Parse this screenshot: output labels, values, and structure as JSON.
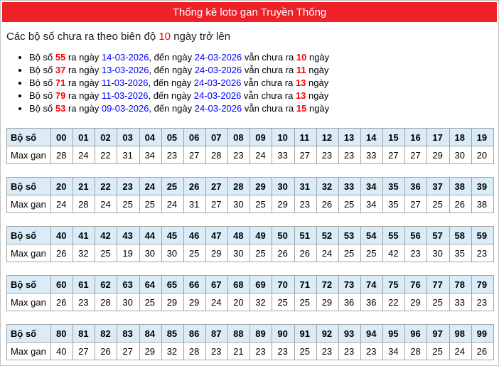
{
  "header": {
    "title": "Thống kê loto gan Truyền Thống",
    "bar_color": "#ee2129"
  },
  "subtitle": {
    "prefix": "Các bộ số chưa ra theo biên độ ",
    "threshold": "10",
    "suffix": " ngày trở lên"
  },
  "alert_text": {
    "p1": "Bộ số ",
    "p2": " ra ngày ",
    "p3": ", đến ngày ",
    "p4": " vẫn chưa ra ",
    "p5": " ngày"
  },
  "alerts": [
    {
      "number": "55",
      "from": "14-03-2026",
      "to": "24-03-2026",
      "days": "10"
    },
    {
      "number": "37",
      "from": "13-03-2026",
      "to": "24-03-2026",
      "days": "11"
    },
    {
      "number": "71",
      "from": "11-03-2026",
      "to": "24-03-2026",
      "days": "13"
    },
    {
      "number": "79",
      "from": "11-03-2026",
      "to": "24-03-2026",
      "days": "13"
    },
    {
      "number": "53",
      "from": "09-03-2026",
      "to": "24-03-2026",
      "days": "15"
    }
  ],
  "table_labels": {
    "header": "Bộ số",
    "row": "Max gan"
  },
  "tables": [
    {
      "numbers": [
        "00",
        "01",
        "02",
        "03",
        "04",
        "05",
        "06",
        "07",
        "08",
        "09",
        "10",
        "11",
        "12",
        "13",
        "14",
        "15",
        "16",
        "17",
        "18",
        "19"
      ],
      "values": [
        "28",
        "24",
        "22",
        "31",
        "34",
        "23",
        "27",
        "28",
        "23",
        "24",
        "33",
        "27",
        "23",
        "23",
        "33",
        "27",
        "27",
        "29",
        "30",
        "20"
      ]
    },
    {
      "numbers": [
        "20",
        "21",
        "22",
        "23",
        "24",
        "25",
        "26",
        "27",
        "28",
        "29",
        "30",
        "31",
        "32",
        "33",
        "34",
        "35",
        "36",
        "37",
        "38",
        "39"
      ],
      "values": [
        "24",
        "28",
        "24",
        "25",
        "25",
        "24",
        "31",
        "27",
        "30",
        "25",
        "29",
        "23",
        "26",
        "25",
        "34",
        "35",
        "27",
        "25",
        "26",
        "38"
      ]
    },
    {
      "numbers": [
        "40",
        "41",
        "42",
        "43",
        "44",
        "45",
        "46",
        "47",
        "48",
        "49",
        "50",
        "51",
        "52",
        "53",
        "54",
        "55",
        "56",
        "57",
        "58",
        "59"
      ],
      "values": [
        "26",
        "32",
        "25",
        "19",
        "30",
        "30",
        "25",
        "29",
        "30",
        "25",
        "26",
        "26",
        "24",
        "25",
        "25",
        "42",
        "23",
        "30",
        "35",
        "23"
      ]
    },
    {
      "numbers": [
        "60",
        "61",
        "62",
        "63",
        "64",
        "65",
        "66",
        "67",
        "68",
        "69",
        "70",
        "71",
        "72",
        "73",
        "74",
        "75",
        "76",
        "77",
        "78",
        "79"
      ],
      "values": [
        "26",
        "23",
        "28",
        "30",
        "25",
        "29",
        "29",
        "24",
        "20",
        "32",
        "25",
        "25",
        "29",
        "36",
        "36",
        "22",
        "29",
        "25",
        "33",
        "23"
      ]
    },
    {
      "numbers": [
        "80",
        "81",
        "82",
        "83",
        "84",
        "85",
        "86",
        "87",
        "88",
        "89",
        "90",
        "91",
        "92",
        "93",
        "94",
        "95",
        "96",
        "97",
        "98",
        "99"
      ],
      "values": [
        "40",
        "27",
        "26",
        "27",
        "29",
        "32",
        "28",
        "23",
        "21",
        "23",
        "23",
        "25",
        "23",
        "23",
        "23",
        "34",
        "28",
        "25",
        "24",
        "26"
      ]
    }
  ],
  "colors": {
    "accent_red_bar": "#ee2129",
    "text_red": "#ff0000",
    "text_blue": "#0000ff",
    "table_header_bg": "#d9ecf7",
    "cell_border": "#a3a3a3"
  }
}
